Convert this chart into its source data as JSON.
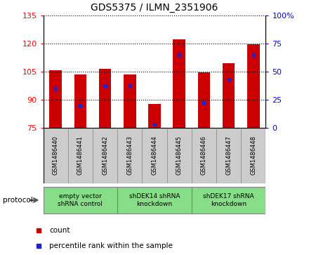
{
  "title": "GDS5375 / ILMN_2351906",
  "samples": [
    "GSM1486440",
    "GSM1486441",
    "GSM1486442",
    "GSM1486443",
    "GSM1486444",
    "GSM1486445",
    "GSM1486446",
    "GSM1486447",
    "GSM1486448"
  ],
  "counts": [
    105.5,
    103.5,
    106.5,
    103.5,
    87.5,
    122.0,
    104.5,
    109.5,
    119.5
  ],
  "percentile_ranks": [
    35,
    20,
    37,
    37,
    3,
    65,
    22,
    43,
    65
  ],
  "bar_bottom": 75,
  "ylim_left": [
    75,
    135
  ],
  "ylim_right": [
    0,
    100
  ],
  "yticks_left": [
    75,
    90,
    105,
    120,
    135
  ],
  "yticks_right": [
    0,
    25,
    50,
    75,
    100
  ],
  "bar_color": "#CC0000",
  "dot_color": "#2222CC",
  "bar_width": 0.5,
  "protocol_groups": [
    {
      "label": "empty vector\nshRNA control",
      "start": 0,
      "end": 3,
      "color": "#88DD88"
    },
    {
      "label": "shDEK14 shRNA\nknockdown",
      "start": 3,
      "end": 6,
      "color": "#88DD88"
    },
    {
      "label": "shDEK17 shRNA\nknockdown",
      "start": 6,
      "end": 9,
      "color": "#88DD88"
    }
  ],
  "legend_count_label": "count",
  "legend_pct_label": "percentile rank within the sample",
  "protocol_label": "protocol"
}
